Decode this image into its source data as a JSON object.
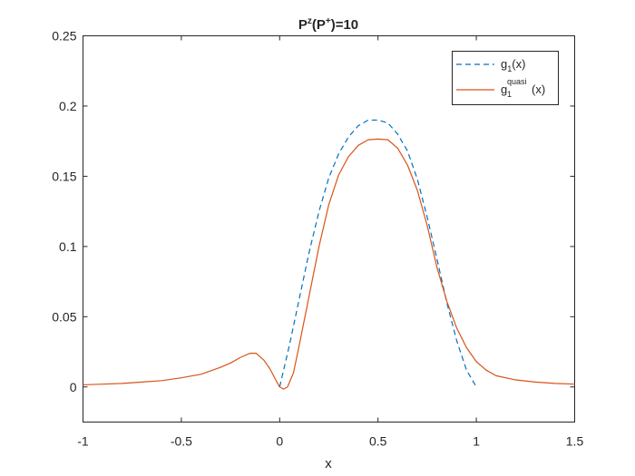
{
  "chart_data": {
    "type": "line",
    "title": {
      "base1": "P",
      "sup1": "z",
      "base2": "(P",
      "sup2": "+",
      "base3": ")=10"
    },
    "xlabel": "x",
    "ylabel": "",
    "xlim": [
      -1,
      1.5
    ],
    "ylim": [
      -0.025,
      0.25
    ],
    "xticks": [
      -1,
      -0.5,
      0,
      0.5,
      1,
      1.5
    ],
    "xtick_labels": [
      "-1",
      "-0.5",
      "0",
      "0.5",
      "1",
      "1.5"
    ],
    "yticks": [
      0,
      0.05,
      0.1,
      0.15,
      0.2,
      0.25
    ],
    "ytick_labels": [
      "0",
      "0.05",
      "0.1",
      "0.15",
      "0.2",
      "0.25"
    ],
    "grid": false,
    "legend_position": "top-right",
    "series": [
      {
        "name": "g1(x)",
        "legend": {
          "base": "g",
          "sub": "1",
          "sup": "",
          "tail": "(x)"
        },
        "color": "#0072BD",
        "style": "dashed",
        "x": [
          0.0,
          0.05,
          0.1,
          0.15,
          0.2,
          0.25,
          0.3,
          0.35,
          0.4,
          0.45,
          0.5,
          0.55,
          0.6,
          0.65,
          0.7,
          0.75,
          0.8,
          0.85,
          0.9,
          0.95,
          1.0
        ],
        "values": [
          0.0,
          0.03,
          0.063,
          0.096,
          0.125,
          0.149,
          0.166,
          0.178,
          0.186,
          0.19,
          0.19,
          0.188,
          0.18,
          0.168,
          0.148,
          0.121,
          0.091,
          0.06,
          0.033,
          0.012,
          0.0
        ]
      },
      {
        "name": "g1quasi(x)",
        "legend": {
          "base": "g",
          "sub": "1",
          "sup": "quasi",
          "tail": "(x)"
        },
        "color": "#D95319",
        "style": "solid",
        "x": [
          -1.0,
          -0.9,
          -0.8,
          -0.7,
          -0.6,
          -0.5,
          -0.4,
          -0.3,
          -0.25,
          -0.2,
          -0.15,
          -0.12,
          -0.08,
          -0.05,
          -0.02,
          0.0,
          0.02,
          0.04,
          0.07,
          0.1,
          0.15,
          0.2,
          0.25,
          0.3,
          0.35,
          0.4,
          0.45,
          0.5,
          0.55,
          0.6,
          0.65,
          0.7,
          0.75,
          0.8,
          0.85,
          0.9,
          0.95,
          1.0,
          1.05,
          1.1,
          1.2,
          1.3,
          1.4,
          1.5
        ],
        "values": [
          0.0015,
          0.002,
          0.0025,
          0.0035,
          0.0045,
          0.0065,
          0.009,
          0.014,
          0.017,
          0.021,
          0.024,
          0.024,
          0.019,
          0.013,
          0.005,
          0.0,
          -0.0015,
          0.0,
          0.01,
          0.03,
          0.065,
          0.1,
          0.13,
          0.151,
          0.164,
          0.172,
          0.176,
          0.1765,
          0.176,
          0.17,
          0.158,
          0.14,
          0.115,
          0.085,
          0.061,
          0.042,
          0.028,
          0.018,
          0.012,
          0.008,
          0.005,
          0.0035,
          0.0025,
          0.002
        ]
      }
    ]
  }
}
